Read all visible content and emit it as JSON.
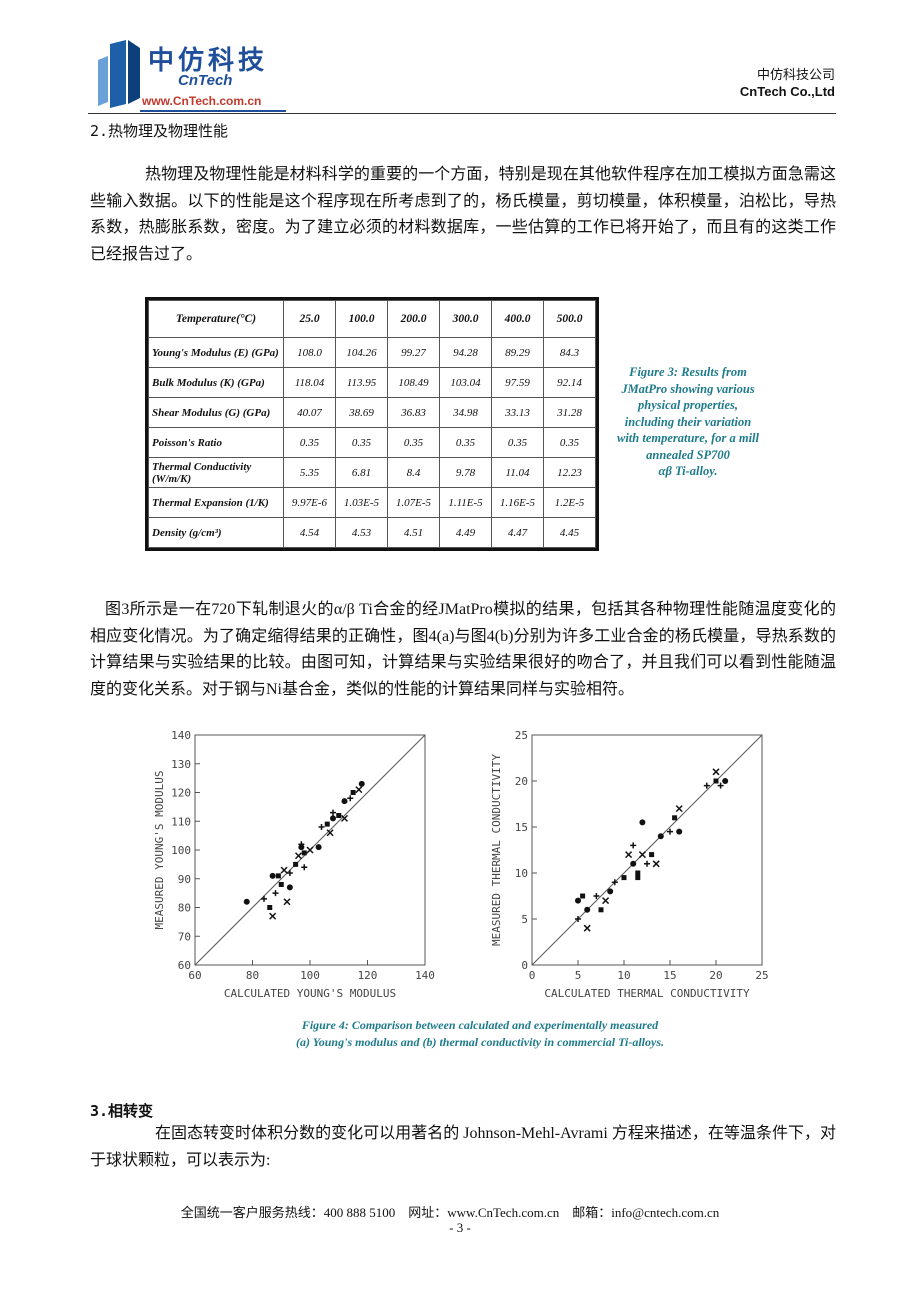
{
  "header": {
    "logo_cn": "中仿科技",
    "logo_en": "CnTech",
    "logo_url": "www.CnTech.com.cn",
    "company_cn": "中仿科技公司",
    "company_en": "CnTech Co.,Ltd"
  },
  "section2": {
    "heading": "2.热物理及物理性能",
    "paragraph": "热物理及物理性能是材料科学的重要的一个方面，特别是现在其他软件程序在加工模拟方面急需这些输入数据。以下的性能是这个程序现在所考虑到了的，杨氏模量，剪切模量，体积模量，泊松比，导热系数，热膨胀系数，密度。为了建立必须的材料数据库，一些估算的工作已将开始了，而且有的这类工作已经报告过了。"
  },
  "table": {
    "header": [
      "Temperature(°C)",
      "25.0",
      "100.0",
      "200.0",
      "300.0",
      "400.0",
      "500.0"
    ],
    "rows": [
      [
        "Young's Modulus (E) (GPa)",
        "108.0",
        "104.26",
        "99.27",
        "94.28",
        "89.29",
        "84.3"
      ],
      [
        "Bulk Modulus (K) (GPa)",
        "118.04",
        "113.95",
        "108.49",
        "103.04",
        "97.59",
        "92.14"
      ],
      [
        "Shear Modulus (G) (GPa)",
        "40.07",
        "38.69",
        "36.83",
        "34.98",
        "33.13",
        "31.28"
      ],
      [
        "Poisson's Ratio",
        "0.35",
        "0.35",
        "0.35",
        "0.35",
        "0.35",
        "0.35"
      ],
      [
        "Thermal Conductivity (W/m/K)",
        "5.35",
        "6.81",
        "8.4",
        "9.78",
        "11.04",
        "12.23"
      ],
      [
        "Thermal Expansion (1/K)",
        "9.97E-6",
        "1.03E-5",
        "1.07E-5",
        "1.11E-5",
        "1.16E-5",
        "1.2E-5"
      ],
      [
        "Density (g/cm³)",
        "4.54",
        "4.53",
        "4.51",
        "4.49",
        "4.47",
        "4.45"
      ]
    ]
  },
  "figure3_caption": [
    "Figure 3: Results from",
    "JMatPro showing various",
    "physical properties,",
    "including their variation",
    "with temperature, for a mill",
    "annealed SP700",
    "αβ Ti-alloy."
  ],
  "paragraph2": "图3所示是一在720下轧制退火的α/β Ti合金的经JMatPro模拟的结果，包括其各种物理性能随温度变化的相应变化情况。为了确定缩得结果的正确性，图4(a)与图4(b)分别为许多工业合金的杨氏模量，导热系数的计算结果与实验结果的比较。由图可知，计算结果与实验结果很好的吻合了，并且我们可以看到性能随温度的变化关系。对于钢与Ni基合金，类似的性能的计算结果同样与实验相符。",
  "chart_data": [
    {
      "type": "scatter",
      "x_label": "CALCULATED YOUNG'S MODULUS",
      "y_label": "MEASURED YOUNG'S MODULUS",
      "xlim": [
        60,
        140
      ],
      "ylim": [
        60,
        140
      ],
      "xticks": [
        60,
        80,
        100,
        120,
        140
      ],
      "yticks": [
        60,
        70,
        80,
        90,
        100,
        110,
        120,
        130,
        140
      ],
      "color": "#111111",
      "x": [
        78,
        84,
        86,
        87,
        87,
        88,
        90,
        92,
        93,
        93,
        95,
        96,
        97,
        98,
        98,
        100,
        103,
        104,
        106,
        107,
        108,
        108,
        110,
        112,
        112,
        114,
        115,
        117,
        118,
        97,
        89,
        91
      ],
      "values": [
        82,
        83,
        80,
        77,
        91,
        85,
        88,
        82,
        87,
        92,
        95,
        98,
        101,
        94,
        99,
        100,
        101,
        108,
        109,
        106,
        111,
        113,
        112,
        111,
        117,
        118,
        120,
        121,
        123,
        102,
        91,
        93
      ]
    },
    {
      "type": "scatter",
      "x_label": "CALCULATED THERMAL CONDUCTIVITY",
      "y_label": "MEASURED THERMAL CONDUCTIVITY",
      "xlim": [
        0,
        25
      ],
      "ylim": [
        0,
        25
      ],
      "xticks": [
        0,
        5,
        10,
        15,
        20,
        25
      ],
      "yticks": [
        0,
        5,
        10,
        15,
        20,
        25
      ],
      "color": "#111111",
      "x": [
        5,
        5,
        5.5,
        6,
        6,
        7,
        7.5,
        8,
        8.5,
        9,
        10,
        10.5,
        11,
        11,
        11.5,
        12,
        12,
        12.5,
        13,
        13.5,
        14,
        15,
        15.5,
        16,
        16,
        19,
        20,
        20,
        21,
        20.5,
        11.5
      ],
      "values": [
        7,
        5,
        7.5,
        4,
        6,
        7.5,
        6,
        7,
        8,
        9,
        9.5,
        12,
        11,
        13,
        10,
        12,
        15.5,
        11,
        12,
        11,
        14,
        14.5,
        16,
        17,
        14.5,
        19.5,
        20,
        21,
        20,
        19.5,
        9.5
      ]
    }
  ],
  "figure4_caption": [
    "Figure 4: Comparison between calculated and experimentally measured",
    "(a) Young's modulus and (b) thermal conductivity in commercial Ti-alloys."
  ],
  "section3": {
    "heading": "3.相转变",
    "paragraph": "在固态转变时体积分数的变化可以用著名的 Johnson-Mehl-Avrami 方程来描述，在等温条件下，对于球状颗粒，可以表示为:"
  },
  "footer": {
    "contact": "全国统一客户服务热线：400 888 5100　网址：www.CnTech.com.cn　邮箱：info@cntech.com.cn",
    "page": "- 3 -"
  }
}
